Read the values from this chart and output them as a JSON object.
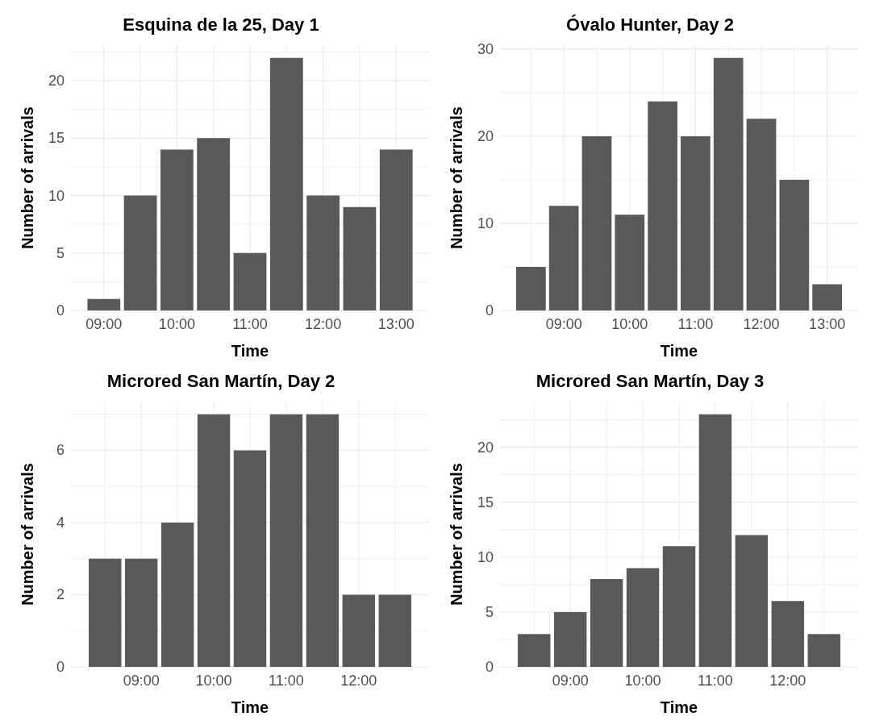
{
  "chart_data": [
    {
      "type": "bar",
      "title": "Esquina de la 25, Day 1",
      "xlabel": "Time",
      "ylabel": "Number of arrivals",
      "x": [
        9,
        9.5,
        10,
        10.5,
        11,
        11.5,
        12,
        12.5,
        13
      ],
      "values": [
        1,
        10,
        14,
        15,
        5,
        22,
        10,
        9,
        14
      ],
      "color": "#595959",
      "xlim": [
        8.55,
        13.45
      ],
      "xticks": [
        {
          "value": 9,
          "label": "09:00"
        },
        {
          "value": 9.5,
          "label": null
        },
        {
          "value": 10,
          "label": "10:00"
        },
        {
          "value": 10.5,
          "label": null
        },
        {
          "value": 11,
          "label": "11:00"
        },
        {
          "value": 11.5,
          "label": null
        },
        {
          "value": 12,
          "label": "12:00"
        },
        {
          "value": 12.5,
          "label": null
        },
        {
          "value": 13,
          "label": "13:00"
        }
      ],
      "ylim": [
        0,
        23.1
      ],
      "yticks": [
        0,
        {
          "value": 2.5,
          "label": null
        },
        5,
        {
          "value": 7.5,
          "label": null
        },
        10,
        {
          "value": 12.5,
          "label": null
        },
        15,
        {
          "value": 17.5,
          "label": null
        },
        20,
        {
          "value": 22.5,
          "label": null
        }
      ],
      "grid": true
    },
    {
      "type": "bar",
      "title": "Óvalo Hunter, Day 2",
      "xlabel": "Time",
      "ylabel": "Number of arrivals",
      "x": [
        8.5,
        9,
        9.5,
        10,
        10.5,
        11,
        11.5,
        12,
        12.5,
        13
      ],
      "values": [
        5,
        12,
        20,
        11,
        24,
        20,
        29,
        22,
        15,
        3
      ],
      "color": "#595959",
      "xlim": [
        8.03,
        13.47
      ],
      "xticks": [
        {
          "value": 8.5,
          "label": null
        },
        {
          "value": 9,
          "label": "09:00"
        },
        {
          "value": 9.5,
          "label": null
        },
        {
          "value": 10,
          "label": "10:00"
        },
        {
          "value": 10.5,
          "label": null
        },
        {
          "value": 11,
          "label": "11:00"
        },
        {
          "value": 11.5,
          "label": null
        },
        {
          "value": 12,
          "label": "12:00"
        },
        {
          "value": 12.5,
          "label": null
        },
        {
          "value": 13,
          "label": "13:00"
        }
      ],
      "ylim": [
        0,
        30.45
      ],
      "yticks": [
        0,
        {
          "value": 5,
          "label": null
        },
        10,
        {
          "value": 15,
          "label": null
        },
        20,
        {
          "value": 25,
          "label": null
        },
        30
      ],
      "grid": true
    },
    {
      "type": "bar",
      "title": "Microred San Martín, Day 2",
      "xlabel": "Time",
      "ylabel": "Number of arrivals",
      "x": [
        8.5,
        9,
        9.5,
        10,
        10.5,
        11,
        11.5,
        12,
        12.5
      ],
      "values": [
        3,
        3,
        4,
        7,
        6,
        7,
        7,
        2,
        2
      ],
      "color": "#595959",
      "xlim": [
        8.03,
        12.97
      ],
      "xticks": [
        {
          "value": 8.5,
          "label": null
        },
        {
          "value": 9,
          "label": "09:00"
        },
        {
          "value": 9.5,
          "label": null
        },
        {
          "value": 10,
          "label": "10:00"
        },
        {
          "value": 10.5,
          "label": null
        },
        {
          "value": 11,
          "label": "11:00"
        },
        {
          "value": 11.5,
          "label": null
        },
        {
          "value": 12,
          "label": "12:00"
        },
        {
          "value": 12.5,
          "label": null
        }
      ],
      "ylim": [
        0,
        7.35
      ],
      "yticks": [
        0,
        {
          "value": 1,
          "label": null
        },
        2,
        {
          "value": 3,
          "label": null
        },
        4,
        {
          "value": 5,
          "label": null
        },
        6,
        {
          "value": 7,
          "label": null
        }
      ],
      "grid": true
    },
    {
      "type": "bar",
      "title": "Microred San Martín, Day 3",
      "xlabel": "Time",
      "ylabel": "Number of arrivals",
      "x": [
        8.5,
        9,
        9.5,
        10,
        10.5,
        11,
        11.5,
        12,
        12.5
      ],
      "values": [
        3,
        5,
        8,
        9,
        11,
        23,
        12,
        6,
        3
      ],
      "color": "#595959",
      "xlim": [
        8.03,
        12.97
      ],
      "xticks": [
        {
          "value": 8.5,
          "label": null
        },
        {
          "value": 9,
          "label": "09:00"
        },
        {
          "value": 9.5,
          "label": null
        },
        {
          "value": 10,
          "label": "10:00"
        },
        {
          "value": 10.5,
          "label": null
        },
        {
          "value": 11,
          "label": "11:00"
        },
        {
          "value": 11.5,
          "label": null
        },
        {
          "value": 12,
          "label": "12:00"
        },
        {
          "value": 12.5,
          "label": null
        }
      ],
      "ylim": [
        0,
        24.15
      ],
      "yticks": [
        0,
        {
          "value": 2.5,
          "label": null
        },
        5,
        {
          "value": 7.5,
          "label": null
        },
        10,
        {
          "value": 12.5,
          "label": null
        },
        15,
        {
          "value": 17.5,
          "label": null
        },
        20,
        {
          "value": 22.5,
          "label": null
        }
      ],
      "grid": true
    }
  ]
}
